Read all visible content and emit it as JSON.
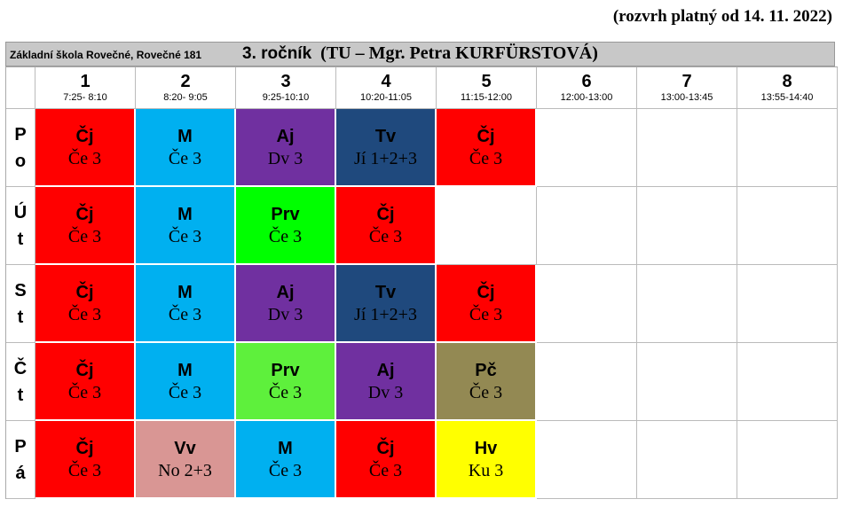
{
  "validity": "(rozvrh platný od 14. 11. 2022)",
  "school": "Základní škola Rovečné, Rovečné 181",
  "class_title": {
    "grade": "3. ročník",
    "teacher": "(TU – Mgr. Petra KURFÜRSTOVÁ)"
  },
  "periods": [
    {
      "num": "1",
      "time": "7:25- 8:10"
    },
    {
      "num": "2",
      "time": "8:20- 9:05"
    },
    {
      "num": "3",
      "time": "9:25-10:10"
    },
    {
      "num": "4",
      "time": "10:20-11:05"
    },
    {
      "num": "5",
      "time": "11:15-12:00"
    },
    {
      "num": "6",
      "time": "12:00-13:00"
    },
    {
      "num": "7",
      "time": "13:00-13:45"
    },
    {
      "num": "8",
      "time": "13:55-14:40"
    }
  ],
  "days": [
    {
      "abbr_top": "P",
      "abbr_bottom": "o",
      "lessons": [
        {
          "subject": "Čj",
          "room": "Če 3",
          "color": "#ff0000",
          "text_color": "#000000"
        },
        {
          "subject": "M",
          "room": "Če 3",
          "color": "#00b0f0",
          "text_color": "#000000"
        },
        {
          "subject": "Aj",
          "room": "Dv 3",
          "color": "#7030a0",
          "text_color": "#000000"
        },
        {
          "subject": "Tv",
          "room": "Jí 1+2+3",
          "color": "#1f497d",
          "text_color": "#000000"
        },
        {
          "subject": "Čj",
          "room": "Če 3",
          "color": "#ff0000",
          "text_color": "#000000"
        }
      ]
    },
    {
      "abbr_top": "Ú",
      "abbr_bottom": "t",
      "lessons": [
        {
          "subject": "Čj",
          "room": "Če 3",
          "color": "#ff0000",
          "text_color": "#000000"
        },
        {
          "subject": "M",
          "room": "Če 3",
          "color": "#00b0f0",
          "text_color": "#000000"
        },
        {
          "subject": "Prv",
          "room": "Če 3",
          "color": "#00ff00",
          "text_color": "#000000"
        },
        {
          "subject": "Čj",
          "room": "Če 3",
          "color": "#ff0000",
          "text_color": "#000000"
        }
      ]
    },
    {
      "abbr_top": "S",
      "abbr_bottom": "t",
      "lessons": [
        {
          "subject": "Čj",
          "room": "Če 3",
          "color": "#ff0000",
          "text_color": "#000000"
        },
        {
          "subject": "M",
          "room": "Če 3",
          "color": "#00b0f0",
          "text_color": "#000000"
        },
        {
          "subject": "Aj",
          "room": "Dv 3",
          "color": "#7030a0",
          "text_color": "#000000"
        },
        {
          "subject": "Tv",
          "room": "Jí 1+2+3",
          "color": "#1f497d",
          "text_color": "#000000"
        },
        {
          "subject": "Čj",
          "room": "Če 3",
          "color": "#ff0000",
          "text_color": "#000000"
        }
      ]
    },
    {
      "abbr_top": "Č",
      "abbr_bottom": "t",
      "lessons": [
        {
          "subject": "Čj",
          "room": "Če 3",
          "color": "#ff0000",
          "text_color": "#000000"
        },
        {
          "subject": "M",
          "room": "Če 3",
          "color": "#00b0f0",
          "text_color": "#000000"
        },
        {
          "subject": "Prv",
          "room": "Če 3",
          "color": "#5ef03c",
          "text_color": "#000000"
        },
        {
          "subject": "Aj",
          "room": "Dv 3",
          "color": "#7030a0",
          "text_color": "#000000"
        },
        {
          "subject": "Pč",
          "room": "Če 3",
          "color": "#938953",
          "text_color": "#000000"
        }
      ]
    },
    {
      "abbr_top": "P",
      "abbr_bottom": "á",
      "lessons": [
        {
          "subject": "Čj",
          "room": "Če 3",
          "color": "#ff0000",
          "text_color": "#000000"
        },
        {
          "subject": "Vv",
          "room": "No 2+3",
          "color": "#d99694",
          "text_color": "#000000"
        },
        {
          "subject": "M",
          "room": "Če 3",
          "color": "#00b0f0",
          "text_color": "#000000"
        },
        {
          "subject": "Čj",
          "room": "Če 3",
          "color": "#ff0000",
          "text_color": "#000000"
        },
        {
          "subject": "Hv",
          "room": "Ku 3",
          "color": "#ffff00",
          "text_color": "#000000"
        }
      ]
    }
  ]
}
